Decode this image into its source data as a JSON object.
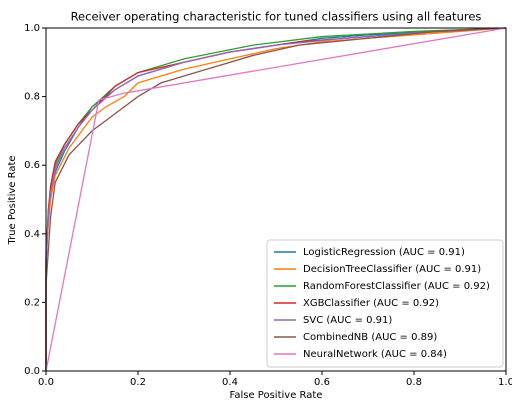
{
  "chart_data": {
    "type": "line",
    "title": "Receiver operating characteristic for tuned classifiers using all features",
    "xlabel": "False Positive Rate",
    "ylabel": "True Positive Rate",
    "xlim": [
      0,
      1
    ],
    "ylim": [
      0,
      1
    ],
    "xticks": [
      {
        "value": 0,
        "label": "0.0"
      },
      0.2,
      0.4,
      0.6,
      0.8,
      {
        "value": 1,
        "label": "1.0"
      }
    ],
    "yticks": [
      {
        "value": 0,
        "label": "0.0"
      },
      0.2,
      0.4,
      0.6,
      0.8,
      {
        "value": 1,
        "label": "1.0"
      }
    ],
    "grid": false,
    "legend": "lower right",
    "series": [
      {
        "name": "LogisticRegression (AUC = 0.91)",
        "color": "#1f77b4",
        "x": [
          0,
          0,
          0.005,
          0.01,
          0.02,
          0.04,
          0.07,
          0.1,
          0.15,
          0.2,
          0.3,
          0.4,
          0.5,
          0.6,
          0.7,
          0.85,
          1
        ],
        "values": [
          0,
          0.3,
          0.45,
          0.52,
          0.58,
          0.64,
          0.71,
          0.77,
          0.82,
          0.86,
          0.9,
          0.93,
          0.95,
          0.97,
          0.98,
          0.99,
          1
        ]
      },
      {
        "name": "DecisionTreeClassifier (AUC = 0.91)",
        "color": "#ff7f0e",
        "x": [
          0,
          0,
          0.01,
          0.02,
          0.05,
          0.1,
          0.13,
          0.17,
          0.2,
          0.3,
          0.4,
          0.5,
          0.6,
          0.8,
          1
        ],
        "values": [
          0,
          0.35,
          0.5,
          0.57,
          0.65,
          0.74,
          0.77,
          0.8,
          0.84,
          0.88,
          0.91,
          0.94,
          0.96,
          0.98,
          1
        ]
      },
      {
        "name": "RandomForestClassifier (AUC = 0.92)",
        "color": "#2ca02c",
        "x": [
          0,
          0,
          0.005,
          0.01,
          0.02,
          0.04,
          0.07,
          0.1,
          0.15,
          0.2,
          0.3,
          0.45,
          0.6,
          0.8,
          1
        ],
        "values": [
          0,
          0.32,
          0.46,
          0.53,
          0.6,
          0.66,
          0.72,
          0.77,
          0.83,
          0.87,
          0.91,
          0.95,
          0.975,
          0.99,
          1
        ]
      },
      {
        "name": "XGBClassifier (AUC = 0.92)",
        "color": "#d62728",
        "x": [
          0,
          0,
          0.005,
          0.01,
          0.02,
          0.04,
          0.07,
          0.1,
          0.15,
          0.2,
          0.3,
          0.4,
          0.55,
          0.7,
          0.85,
          1
        ],
        "values": [
          0,
          0.33,
          0.47,
          0.54,
          0.61,
          0.66,
          0.72,
          0.76,
          0.83,
          0.87,
          0.9,
          0.93,
          0.96,
          0.975,
          0.99,
          1
        ]
      },
      {
        "name": "SVC (AUC = 0.91)",
        "color": "#9467bd",
        "x": [
          0,
          0,
          0.005,
          0.01,
          0.02,
          0.04,
          0.07,
          0.1,
          0.15,
          0.2,
          0.3,
          0.4,
          0.5,
          0.65,
          0.8,
          1
        ],
        "values": [
          0,
          0.31,
          0.45,
          0.52,
          0.59,
          0.65,
          0.71,
          0.76,
          0.82,
          0.86,
          0.9,
          0.93,
          0.95,
          0.97,
          0.985,
          1
        ]
      },
      {
        "name": "CombinedNB (AUC = 0.89)",
        "color": "#8c564b",
        "x": [
          0,
          0,
          0.01,
          0.02,
          0.05,
          0.1,
          0.15,
          0.2,
          0.25,
          0.35,
          0.45,
          0.55,
          0.7,
          0.85,
          1
        ],
        "values": [
          0,
          0.25,
          0.45,
          0.55,
          0.63,
          0.7,
          0.75,
          0.8,
          0.84,
          0.88,
          0.92,
          0.95,
          0.97,
          0.99,
          1
        ]
      },
      {
        "name": "NeuralNetwork (AUC = 0.84)",
        "color": "#e377c2",
        "x": [
          0,
          0.115,
          0.17,
          1
        ],
        "values": [
          0,
          0.79,
          0.81,
          1
        ]
      }
    ]
  }
}
